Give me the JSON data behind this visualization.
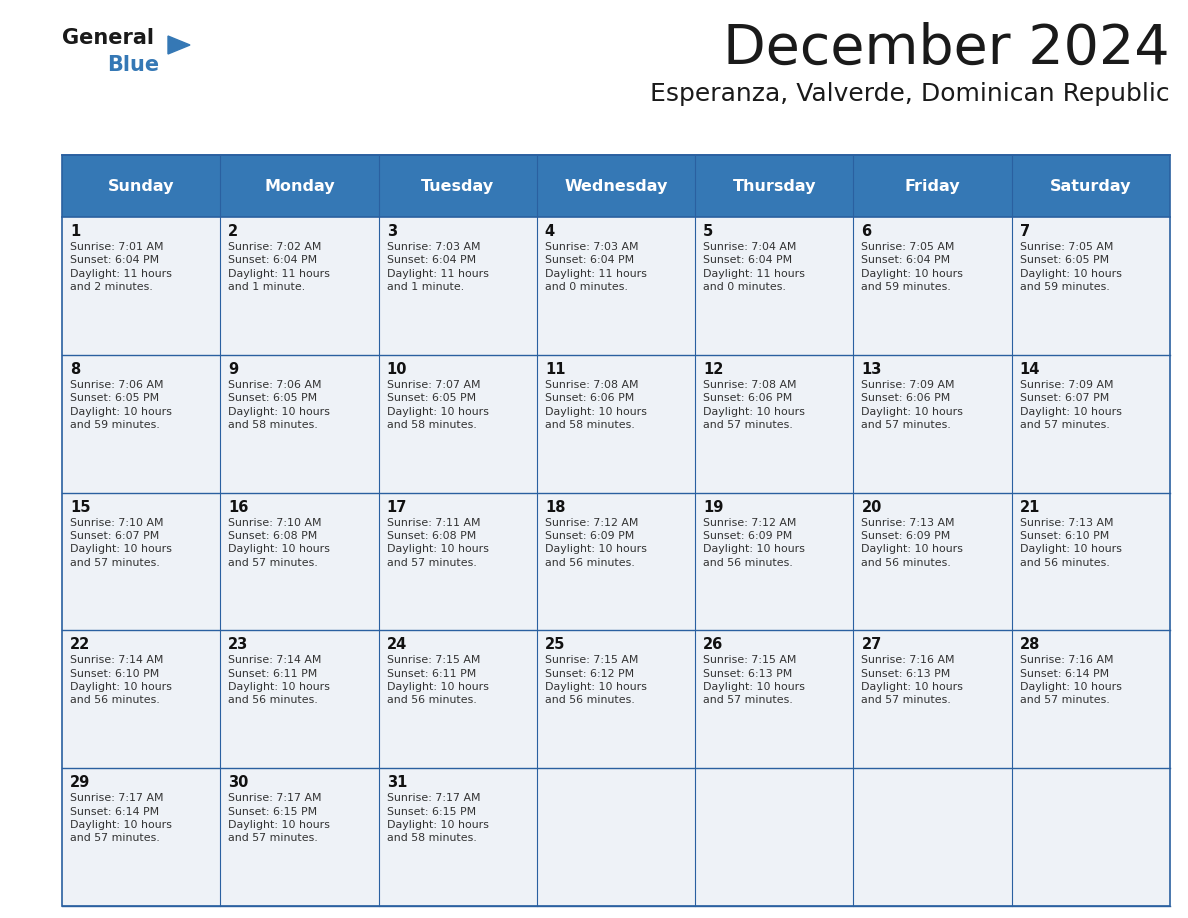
{
  "title": "December 2024",
  "subtitle": "Esperanza, Valverde, Dominican Republic",
  "header_color": "#3578b5",
  "header_text_color": "#ffffff",
  "cell_bg_color": "#eef2f7",
  "border_color": "#2a60a0",
  "days_of_week": [
    "Sunday",
    "Monday",
    "Tuesday",
    "Wednesday",
    "Thursday",
    "Friday",
    "Saturday"
  ],
  "calendar_data": [
    [
      {
        "day": 1,
        "sunrise": "7:01 AM",
        "sunset": "6:04 PM",
        "daylight_hours": 11,
        "daylight_minutes": 2
      },
      {
        "day": 2,
        "sunrise": "7:02 AM",
        "sunset": "6:04 PM",
        "daylight_hours": 11,
        "daylight_minutes": 1
      },
      {
        "day": 3,
        "sunrise": "7:03 AM",
        "sunset": "6:04 PM",
        "daylight_hours": 11,
        "daylight_minutes": 1
      },
      {
        "day": 4,
        "sunrise": "7:03 AM",
        "sunset": "6:04 PM",
        "daylight_hours": 11,
        "daylight_minutes": 0
      },
      {
        "day": 5,
        "sunrise": "7:04 AM",
        "sunset": "6:04 PM",
        "daylight_hours": 11,
        "daylight_minutes": 0
      },
      {
        "day": 6,
        "sunrise": "7:05 AM",
        "sunset": "6:04 PM",
        "daylight_hours": 10,
        "daylight_minutes": 59
      },
      {
        "day": 7,
        "sunrise": "7:05 AM",
        "sunset": "6:05 PM",
        "daylight_hours": 10,
        "daylight_minutes": 59
      }
    ],
    [
      {
        "day": 8,
        "sunrise": "7:06 AM",
        "sunset": "6:05 PM",
        "daylight_hours": 10,
        "daylight_minutes": 59
      },
      {
        "day": 9,
        "sunrise": "7:06 AM",
        "sunset": "6:05 PM",
        "daylight_hours": 10,
        "daylight_minutes": 58
      },
      {
        "day": 10,
        "sunrise": "7:07 AM",
        "sunset": "6:05 PM",
        "daylight_hours": 10,
        "daylight_minutes": 58
      },
      {
        "day": 11,
        "sunrise": "7:08 AM",
        "sunset": "6:06 PM",
        "daylight_hours": 10,
        "daylight_minutes": 58
      },
      {
        "day": 12,
        "sunrise": "7:08 AM",
        "sunset": "6:06 PM",
        "daylight_hours": 10,
        "daylight_minutes": 57
      },
      {
        "day": 13,
        "sunrise": "7:09 AM",
        "sunset": "6:06 PM",
        "daylight_hours": 10,
        "daylight_minutes": 57
      },
      {
        "day": 14,
        "sunrise": "7:09 AM",
        "sunset": "6:07 PM",
        "daylight_hours": 10,
        "daylight_minutes": 57
      }
    ],
    [
      {
        "day": 15,
        "sunrise": "7:10 AM",
        "sunset": "6:07 PM",
        "daylight_hours": 10,
        "daylight_minutes": 57
      },
      {
        "day": 16,
        "sunrise": "7:10 AM",
        "sunset": "6:08 PM",
        "daylight_hours": 10,
        "daylight_minutes": 57
      },
      {
        "day": 17,
        "sunrise": "7:11 AM",
        "sunset": "6:08 PM",
        "daylight_hours": 10,
        "daylight_minutes": 57
      },
      {
        "day": 18,
        "sunrise": "7:12 AM",
        "sunset": "6:09 PM",
        "daylight_hours": 10,
        "daylight_minutes": 56
      },
      {
        "day": 19,
        "sunrise": "7:12 AM",
        "sunset": "6:09 PM",
        "daylight_hours": 10,
        "daylight_minutes": 56
      },
      {
        "day": 20,
        "sunrise": "7:13 AM",
        "sunset": "6:09 PM",
        "daylight_hours": 10,
        "daylight_minutes": 56
      },
      {
        "day": 21,
        "sunrise": "7:13 AM",
        "sunset": "6:10 PM",
        "daylight_hours": 10,
        "daylight_minutes": 56
      }
    ],
    [
      {
        "day": 22,
        "sunrise": "7:14 AM",
        "sunset": "6:10 PM",
        "daylight_hours": 10,
        "daylight_minutes": 56
      },
      {
        "day": 23,
        "sunrise": "7:14 AM",
        "sunset": "6:11 PM",
        "daylight_hours": 10,
        "daylight_minutes": 56
      },
      {
        "day": 24,
        "sunrise": "7:15 AM",
        "sunset": "6:11 PM",
        "daylight_hours": 10,
        "daylight_minutes": 56
      },
      {
        "day": 25,
        "sunrise": "7:15 AM",
        "sunset": "6:12 PM",
        "daylight_hours": 10,
        "daylight_minutes": 56
      },
      {
        "day": 26,
        "sunrise": "7:15 AM",
        "sunset": "6:13 PM",
        "daylight_hours": 10,
        "daylight_minutes": 57
      },
      {
        "day": 27,
        "sunrise": "7:16 AM",
        "sunset": "6:13 PM",
        "daylight_hours": 10,
        "daylight_minutes": 57
      },
      {
        "day": 28,
        "sunrise": "7:16 AM",
        "sunset": "6:14 PM",
        "daylight_hours": 10,
        "daylight_minutes": 57
      }
    ],
    [
      {
        "day": 29,
        "sunrise": "7:17 AM",
        "sunset": "6:14 PM",
        "daylight_hours": 10,
        "daylight_minutes": 57
      },
      {
        "day": 30,
        "sunrise": "7:17 AM",
        "sunset": "6:15 PM",
        "daylight_hours": 10,
        "daylight_minutes": 57
      },
      {
        "day": 31,
        "sunrise": "7:17 AM",
        "sunset": "6:15 PM",
        "daylight_hours": 10,
        "daylight_minutes": 58
      },
      null,
      null,
      null,
      null
    ]
  ],
  "text_color_dark": "#1a1a1a",
  "cell_text_color": "#333333",
  "day_num_color": "#111111",
  "fig_width": 11.88,
  "fig_height": 9.18,
  "dpi": 100
}
